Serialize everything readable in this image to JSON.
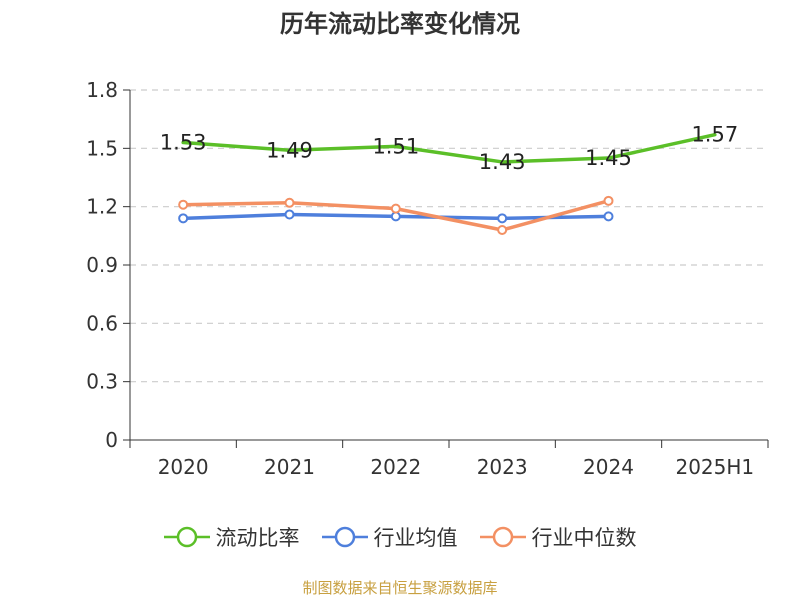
{
  "title": "历年流动比率变化情况",
  "source": "制图数据来自恒生聚源数据库",
  "chart_data": {
    "type": "line",
    "categories": [
      "2020",
      "2021",
      "2022",
      "2023",
      "2024",
      "2025H1"
    ],
    "ylim": [
      0,
      1.8
    ],
    "yticks": [
      "0",
      "0.3",
      "0.6",
      "0.9",
      "1.2",
      "1.5",
      "1.8"
    ],
    "grid": true,
    "legend_position": "bottom",
    "series": [
      {
        "name": "流动比率",
        "color": "#5bbf28",
        "values": [
          1.53,
          1.49,
          1.51,
          1.43,
          1.45,
          1.57
        ],
        "labels": [
          "1.53",
          "1.49",
          "1.51",
          "1.43",
          "1.45",
          "1.57"
        ],
        "markers": false
      },
      {
        "name": "行业均值",
        "color": "#4e7fdc",
        "values": [
          1.14,
          1.16,
          1.15,
          1.14,
          1.15,
          null
        ],
        "markers": true
      },
      {
        "name": "行业中位数",
        "color": "#f39063",
        "values": [
          1.21,
          1.22,
          1.19,
          1.08,
          1.23,
          null
        ],
        "markers": true
      }
    ]
  }
}
